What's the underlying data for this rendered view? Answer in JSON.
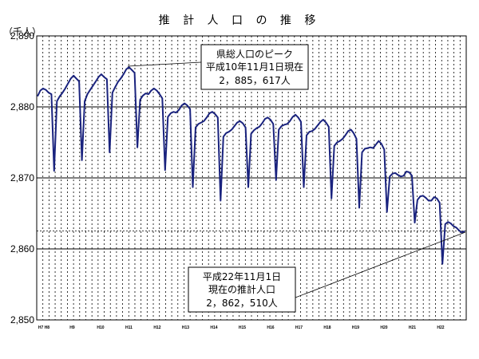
{
  "chart_data": {
    "type": "line",
    "title": "推 計 人 口 の 推 移",
    "unit_label": "（千人）",
    "ylim": [
      2850,
      2890
    ],
    "y_ticks": [
      "2,890",
      "2,880",
      "2,870",
      "2,860",
      "2,850"
    ],
    "y_tick_values": [
      2890,
      2880,
      2870,
      2860,
      2850
    ],
    "x_tick_labels": [
      "H7 H8",
      "H9",
      "H10",
      "H11",
      "H12",
      "H13",
      "H14",
      "H15",
      "H16",
      "H17",
      "H18",
      "H19",
      "H20",
      "H21",
      "H22"
    ],
    "grid": {
      "horizontal": true,
      "vertical_dotted": true
    },
    "reference_line_value": 2862.51,
    "series": [
      {
        "color": "#1a237e",
        "values": [
          2881.5,
          2882.3,
          2882.6,
          2882.4,
          2882.0,
          2881.8,
          2871.0,
          2880.8,
          2881.5,
          2882.0,
          2882.6,
          2883.3,
          2884.0,
          2884.4,
          2884.0,
          2883.6,
          2872.5,
          2880.8,
          2881.8,
          2882.4,
          2883.0,
          2883.6,
          2884.2,
          2884.6,
          2884.2,
          2883.9,
          2873.6,
          2882.0,
          2882.8,
          2883.5,
          2884.0,
          2884.6,
          2885.3,
          2885.6,
          2885.2,
          2884.8,
          2874.3,
          2881.0,
          2881.6,
          2881.9,
          2881.8,
          2882.3,
          2882.6,
          2882.3,
          2881.8,
          2881.2,
          2871.1,
          2878.6,
          2879.1,
          2879.3,
          2879.2,
          2879.6,
          2880.2,
          2880.5,
          2880.2,
          2879.7,
          2868.7,
          2877.1,
          2877.6,
          2877.8,
          2878.0,
          2878.5,
          2879.1,
          2879.3,
          2879.0,
          2878.5,
          2866.8,
          2875.8,
          2876.3,
          2876.5,
          2876.8,
          2877.3,
          2877.8,
          2878.0,
          2877.7,
          2877.1,
          2868.7,
          2876.2,
          2876.7,
          2877.0,
          2877.2,
          2877.7,
          2878.3,
          2878.5,
          2878.2,
          2877.6,
          2869.7,
          2876.8,
          2877.3,
          2877.5,
          2877.6,
          2878.0,
          2878.6,
          2878.9,
          2878.5,
          2877.9,
          2868.7,
          2876.0,
          2876.5,
          2876.6,
          2876.9,
          2877.4,
          2877.9,
          2878.2,
          2877.8,
          2877.2,
          2867.1,
          2874.5,
          2875.0,
          2875.2,
          2875.5,
          2876.0,
          2876.6,
          2876.8,
          2876.3,
          2875.5,
          2865.8,
          2873.6,
          2874.1,
          2874.2,
          2874.3,
          2874.2,
          2874.7,
          2875.2,
          2874.8,
          2874.0,
          2865.2,
          2870.2,
          2870.6,
          2870.7,
          2870.4,
          2870.2,
          2870.3,
          2870.9,
          2870.8,
          2870.3,
          2863.7,
          2866.9,
          2867.4,
          2867.5,
          2867.2,
          2866.8,
          2866.8,
          2867.3,
          2867.1,
          2866.5,
          2857.9,
          2863.5,
          2863.8,
          2863.6,
          2863.2,
          2863.0,
          2862.6,
          2862.3,
          2862.51
        ]
      }
    ],
    "peak": {
      "index": 33,
      "value": 2885.617
    },
    "last": {
      "index": 154,
      "value": 2862.51
    }
  },
  "annotations": {
    "peak_box_lines": [
      "県総人口のピーク",
      "平成10年11月1日現在",
      "2，885，617人"
    ],
    "current_box_lines": [
      "平成22年11月1日",
      "現在の推計人口",
      "2，862，510人"
    ]
  }
}
